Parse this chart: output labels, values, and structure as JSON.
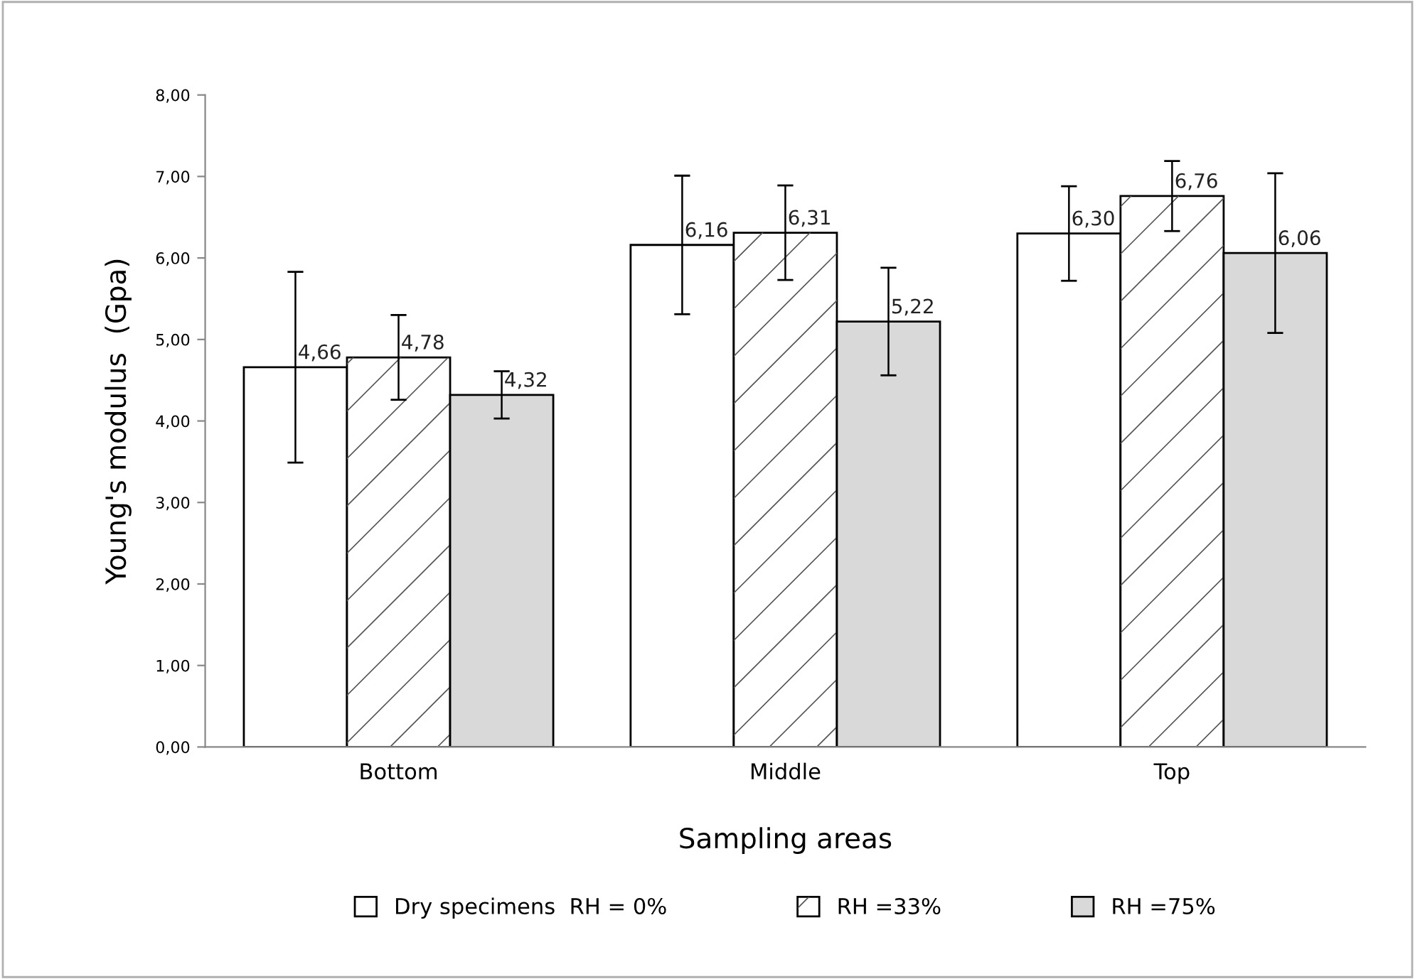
{
  "chart_data": {
    "type": "bar",
    "xlabel": "Sampling areas",
    "ylabel": "Young's modulus  (Gpa)",
    "categories": [
      "Bottom",
      "Middle",
      "Top"
    ],
    "series": [
      {
        "name": "Dry specimens  RH = 0%",
        "color": "#ffffff",
        "values": [
          4.66,
          6.16,
          6.3
        ],
        "errors": [
          1.17,
          0.85,
          0.58
        ],
        "value_labels": [
          "4,66",
          "6,16",
          "6,30"
        ]
      },
      {
        "name": "RH =33%",
        "color": "#ffffff",
        "values": [
          4.78,
          6.31,
          6.76
        ],
        "errors": [
          0.52,
          0.58,
          0.43
        ],
        "value_labels": [
          "4,78",
          "6,31",
          "6,76"
        ]
      },
      {
        "name": "RH =75%",
        "color": "#d9d9d9",
        "values": [
          4.32,
          5.22,
          6.06
        ],
        "errors": [
          0.29,
          0.66,
          0.98
        ],
        "value_labels": [
          "4,32",
          "5,22",
          "6,06"
        ]
      }
    ],
    "ylim": [
      0,
      8
    ],
    "yticks": [
      {
        "value": 0,
        "label": "0,00"
      },
      {
        "value": 1,
        "label": "1,00"
      },
      {
        "value": 2,
        "label": "2,00"
      },
      {
        "value": 3,
        "label": "3,00"
      },
      {
        "value": 4,
        "label": "4,00"
      },
      {
        "value": 5,
        "label": "5,00"
      },
      {
        "value": 6,
        "label": "6,00"
      },
      {
        "value": 7,
        "label": "7,00"
      },
      {
        "value": 8,
        "label": "8,00"
      }
    ],
    "grid": false,
    "legend": "bottom"
  }
}
